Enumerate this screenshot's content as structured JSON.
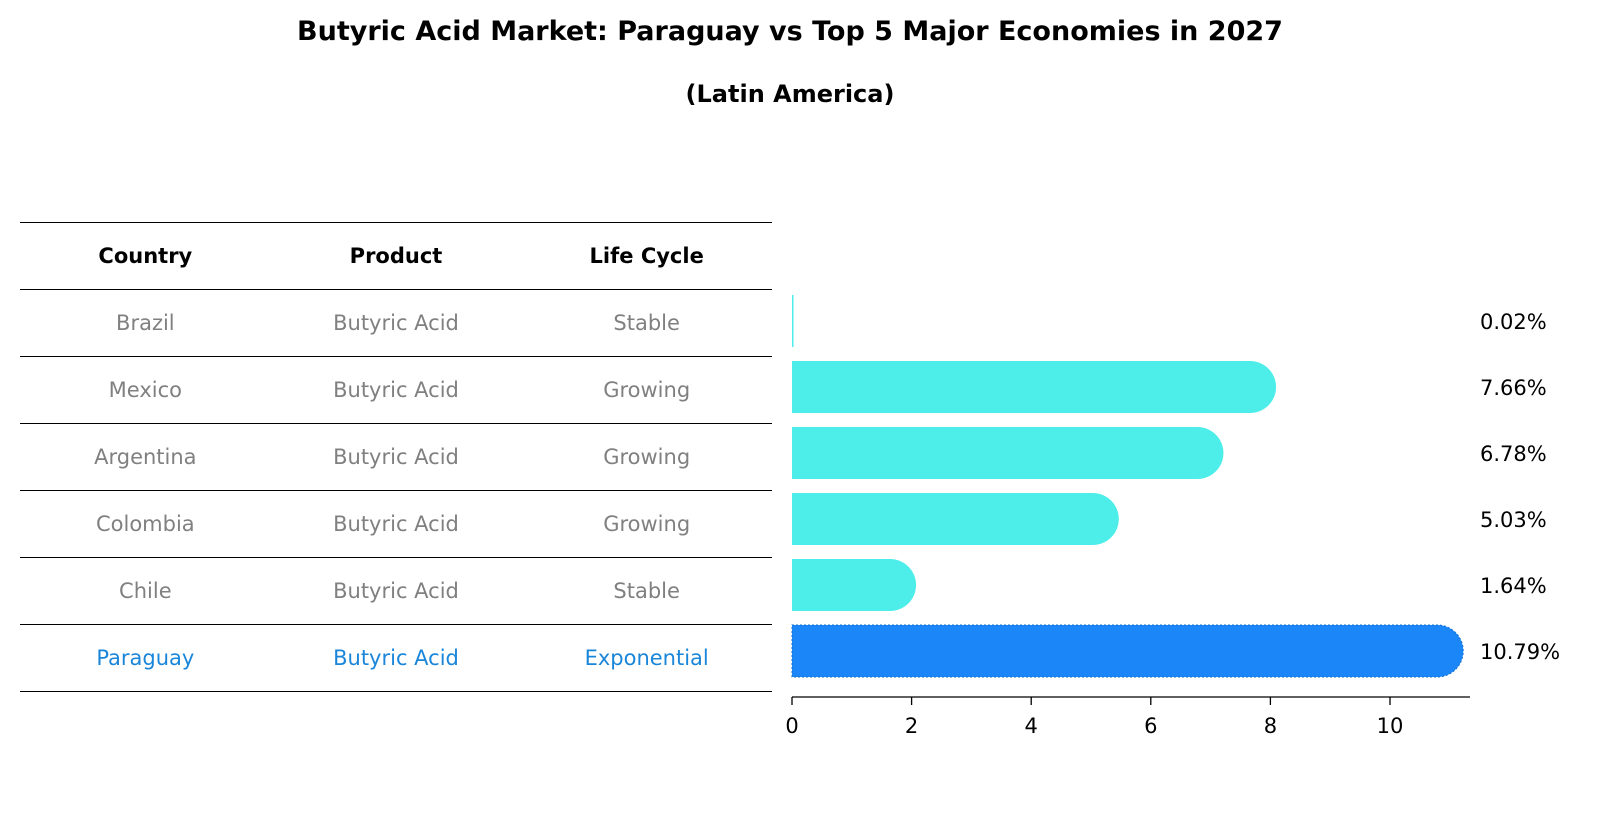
{
  "title": "Butyric Acid Market: Paraguay vs Top 5 Major Economies in 2027",
  "subtitle": "(Latin America)",
  "table": {
    "headers": [
      "Country",
      "Product",
      "Life Cycle"
    ],
    "rows": [
      {
        "country": "Brazil",
        "product": "Butyric Acid",
        "life_cycle": "Stable"
      },
      {
        "country": "Mexico",
        "product": "Butyric Acid",
        "life_cycle": "Growing"
      },
      {
        "country": "Argentina",
        "product": "Butyric Acid",
        "life_cycle": "Growing"
      },
      {
        "country": "Colombia",
        "product": "Butyric Acid",
        "life_cycle": "Growing"
      },
      {
        "country": "Chile",
        "product": "Butyric Acid",
        "life_cycle": "Stable"
      },
      {
        "country": "Paraguay",
        "product": "Butyric Acid",
        "life_cycle": "Exponential"
      }
    ]
  },
  "colors": {
    "bar": "#4deee9",
    "highlight": "#1a86f7",
    "highlight_text": "#1a86d9"
  },
  "chart_data": {
    "type": "bar",
    "orientation": "horizontal",
    "categories": [
      "Brazil",
      "Mexico",
      "Argentina",
      "Colombia",
      "Chile",
      "Paraguay"
    ],
    "values": [
      0.02,
      7.66,
      6.78,
      5.03,
      1.64,
      10.79
    ],
    "value_labels": [
      "0.02%",
      "7.66%",
      "6.78%",
      "5.03%",
      "1.64%",
      "10.79%"
    ],
    "highlight": "Paraguay",
    "xlim": [
      0,
      11.35
    ],
    "xticks": [
      0,
      2,
      4,
      6,
      8,
      10
    ],
    "xlabel": "",
    "ylabel": "",
    "grid": false,
    "legend": "none"
  }
}
